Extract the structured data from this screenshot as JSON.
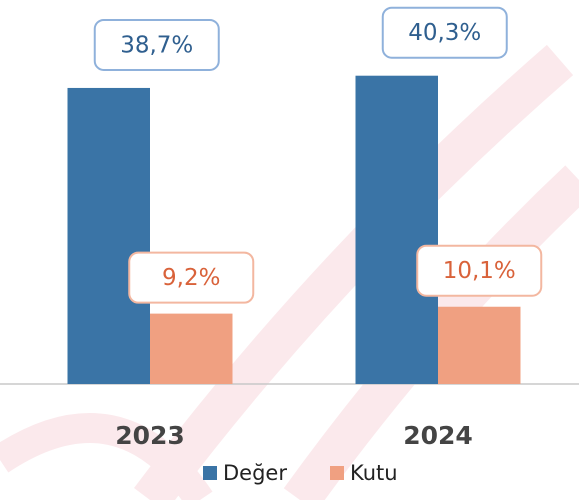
{
  "chart_data": {
    "type": "bar",
    "categories": [
      "2023",
      "2024"
    ],
    "series": [
      {
        "name": "Değer",
        "color": "#3a74a6",
        "values": [
          38.7,
          40.3
        ],
        "value_labels": [
          "38,7%",
          "40,3%"
        ]
      },
      {
        "name": "Kutu",
        "color": "#f0a081",
        "values": [
          9.2,
          10.1
        ],
        "value_labels": [
          "9,2%",
          "10,1%"
        ]
      }
    ]
  }
}
